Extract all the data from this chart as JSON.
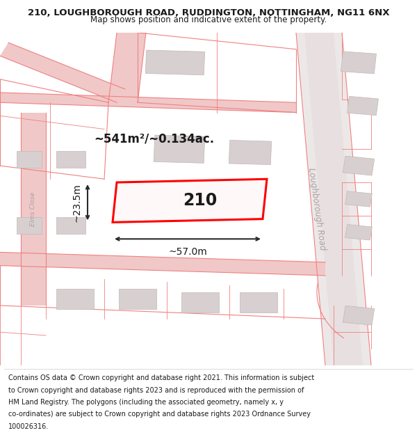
{
  "title_line1": "210, LOUGHBOROUGH ROAD, RUDDINGTON, NOTTINGHAM, NG11 6NX",
  "title_line2": "Map shows position and indicative extent of the property.",
  "background_color": "#f5f0f0",
  "map_background": "#f0eded",
  "road_color": "#f0c8c8",
  "road_edge_color": "#e8a8a8",
  "building_color": "#d8d0d0",
  "building_edge_color": "#c0b8b8",
  "highlight_color": "#ff0000",
  "highlight_fill": "#fff8f8",
  "pinkline": "#f08080",
  "dark_text_color": "#1a1a1a",
  "measurement_color": "#2a2a2a",
  "road_text_color": "#aaa0a0",
  "area_label": "~541m²/~0.134ac.",
  "width_label": "~57.0m",
  "height_label": "~23.5m",
  "plot_number": "210",
  "road_label": "Loughborough Road",
  "road_label2": "Elms Close",
  "footer_lines": [
    "Contains OS data © Crown copyright and database right 2021. This information is subject",
    "to Crown copyright and database rights 2023 and is reproduced with the permission of",
    "HM Land Registry. The polygons (including the associated geometry, namely x, y",
    "co-ordinates) are subject to Crown copyright and database rights 2023 Ordnance Survey",
    "100026316."
  ],
  "title_fontsize": 9.5,
  "subtitle_fontsize": 8.5,
  "footer_fontsize": 7.0
}
